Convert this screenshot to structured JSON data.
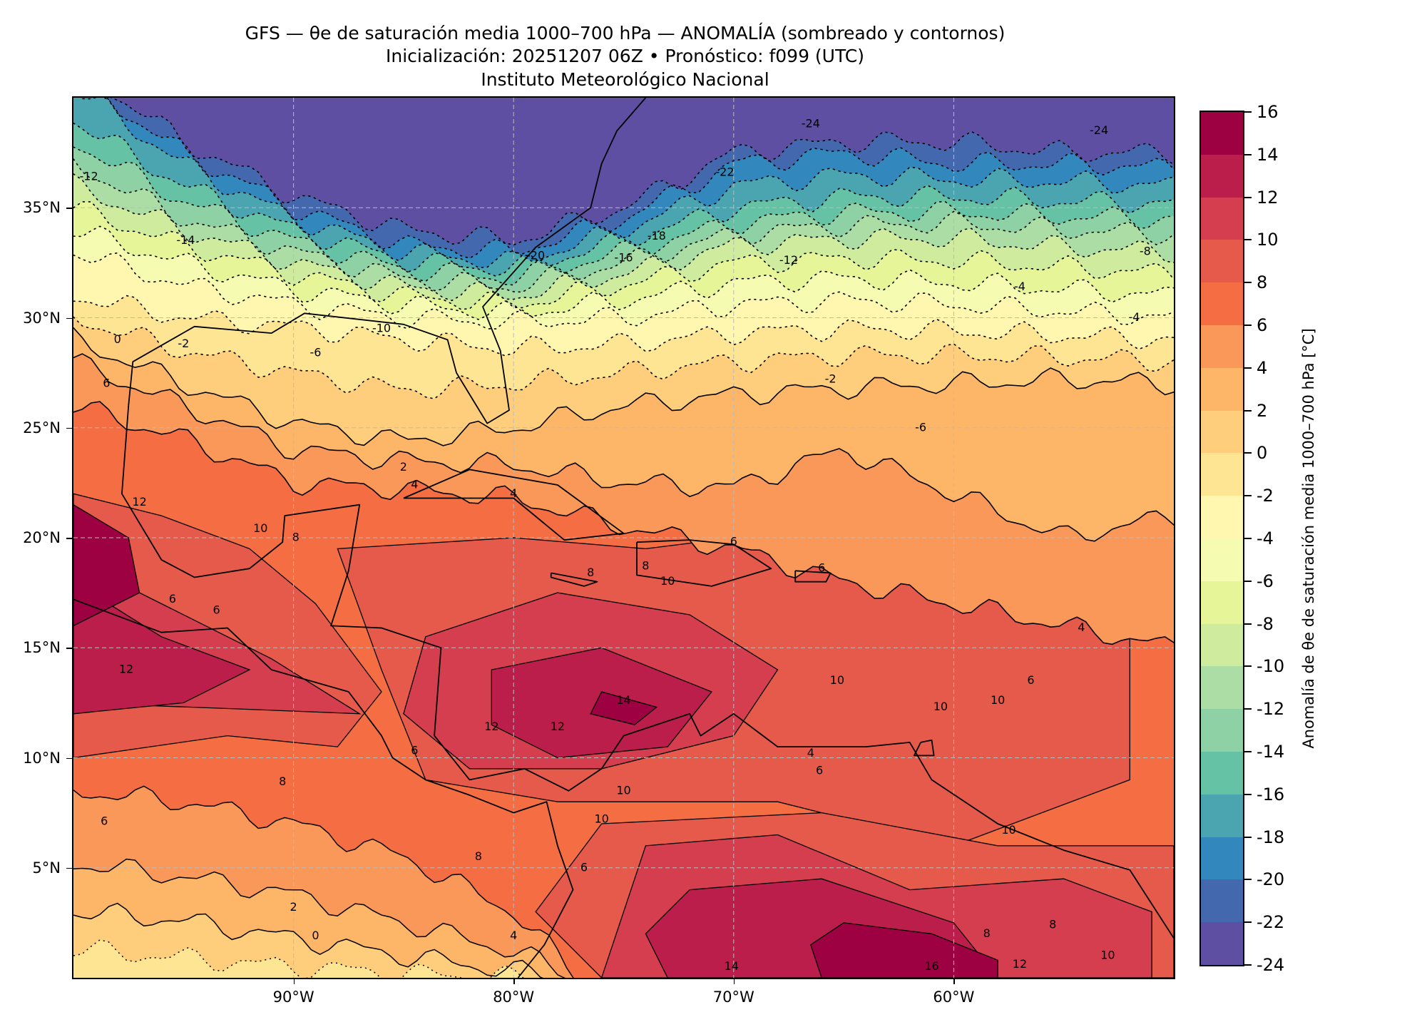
{
  "header": {
    "title_line1": "GFS — θe de saturación media 1000–700 hPa — ANOMALÍA (sombreado y contornos)",
    "title_line2": "Inicialización: 20251207 06Z   •   Pronóstico: f099 (UTC)",
    "title_line3": "Instituto Meteorológico Nacional"
  },
  "chart_data": {
    "type": "heatmap",
    "subtype": "filled contour map",
    "title": "GFS — θe de saturación media 1000–700 hPa — ANOMALÍA (sombreado y contornos)",
    "lon_range": [
      -100,
      -50
    ],
    "lat_range": [
      0,
      40
    ],
    "grid": true,
    "x_ticks": [
      {
        "lon": -90,
        "label": "90°W"
      },
      {
        "lon": -80,
        "label": "80°W"
      },
      {
        "lon": -70,
        "label": "70°W"
      },
      {
        "lon": -60,
        "label": "60°W"
      }
    ],
    "y_ticks": [
      {
        "lat": 5,
        "label": "5°N"
      },
      {
        "lat": 10,
        "label": "10°N"
      },
      {
        "lat": 15,
        "label": "15°N"
      },
      {
        "lat": 20,
        "label": "20°N"
      },
      {
        "lat": 25,
        "label": "25°N"
      },
      {
        "lat": 30,
        "label": "30°N"
      },
      {
        "lat": 35,
        "label": "35°N"
      }
    ],
    "colorbar": {
      "label": "Anomalía de θe de saturación media 1000–700 hPa [°C]",
      "placement": "right",
      "range": [
        -24,
        16
      ],
      "ticks": [
        "-24",
        "-22",
        "-20",
        "-18",
        "-16",
        "-14",
        "-12",
        "-10",
        "-8",
        "-6",
        "-4",
        "-2",
        "0",
        "2",
        "4",
        "6",
        "8",
        "10",
        "12",
        "14",
        "16"
      ],
      "colors": [
        "#5e4fa2",
        "#4468ae",
        "#3288bd",
        "#4ba5b1",
        "#66c2a5",
        "#8ed1a4",
        "#abdda4",
        "#cfeb9d",
        "#e6f598",
        "#f5fbb0",
        "#fff6b0",
        "#fee593",
        "#fece7c",
        "#fdb567",
        "#f99858",
        "#f46d43",
        "#e55a4b",
        "#d53e4f",
        "#bb1e4a",
        "#9e0142"
      ]
    },
    "contour_labels": [
      {
        "lon": -66.5,
        "lat": 38.8,
        "text": "-24"
      },
      {
        "lon": -53.4,
        "lat": 38.5,
        "text": "-24"
      },
      {
        "lon": -70.4,
        "lat": 36.6,
        "text": "-22"
      },
      {
        "lon": -99.3,
        "lat": 36.4,
        "text": "-12"
      },
      {
        "lon": -94.9,
        "lat": 33.5,
        "text": "-14"
      },
      {
        "lon": -79.0,
        "lat": 32.8,
        "text": "-20"
      },
      {
        "lon": -73.5,
        "lat": 33.7,
        "text": "-18"
      },
      {
        "lon": -75.0,
        "lat": 32.7,
        "text": "-16"
      },
      {
        "lon": -67.5,
        "lat": 32.6,
        "text": "-12"
      },
      {
        "lon": -51.3,
        "lat": 33.0,
        "text": "-8"
      },
      {
        "lon": -57.0,
        "lat": 31.4,
        "text": "-4"
      },
      {
        "lon": -51.8,
        "lat": 30.0,
        "text": "-4"
      },
      {
        "lon": -86.0,
        "lat": 29.5,
        "text": "-10"
      },
      {
        "lon": -89.0,
        "lat": 28.4,
        "text": "-6"
      },
      {
        "lon": -98.0,
        "lat": 29.0,
        "text": "0"
      },
      {
        "lon": -95.0,
        "lat": 28.8,
        "text": "-2"
      },
      {
        "lon": -98.5,
        "lat": 27.0,
        "text": "6"
      },
      {
        "lon": -85.0,
        "lat": 23.2,
        "text": "2"
      },
      {
        "lon": -84.5,
        "lat": 22.4,
        "text": "4"
      },
      {
        "lon": -80.0,
        "lat": 22.0,
        "text": "4"
      },
      {
        "lon": -65.6,
        "lat": 27.2,
        "text": "-2"
      },
      {
        "lon": -61.5,
        "lat": 25.0,
        "text": "-6"
      },
      {
        "lon": -97.0,
        "lat": 21.6,
        "text": "12"
      },
      {
        "lon": -91.5,
        "lat": 20.4,
        "text": "10"
      },
      {
        "lon": -89.9,
        "lat": 20.0,
        "text": "8"
      },
      {
        "lon": -95.5,
        "lat": 17.2,
        "text": "6"
      },
      {
        "lon": -93.5,
        "lat": 16.7,
        "text": "6"
      },
      {
        "lon": -76.5,
        "lat": 18.4,
        "text": "8"
      },
      {
        "lon": -74.0,
        "lat": 18.7,
        "text": "8"
      },
      {
        "lon": -73.0,
        "lat": 18.0,
        "text": "10"
      },
      {
        "lon": -70.0,
        "lat": 19.8,
        "text": "6"
      },
      {
        "lon": -66.0,
        "lat": 18.6,
        "text": "6"
      },
      {
        "lon": -54.2,
        "lat": 15.9,
        "text": "4"
      },
      {
        "lon": -65.3,
        "lat": 13.5,
        "text": "10"
      },
      {
        "lon": -60.6,
        "lat": 12.3,
        "text": "10"
      },
      {
        "lon": -58.0,
        "lat": 12.6,
        "text": "10"
      },
      {
        "lon": -56.5,
        "lat": 13.5,
        "text": "6"
      },
      {
        "lon": -97.6,
        "lat": 14.0,
        "text": "12"
      },
      {
        "lon": -75.0,
        "lat": 12.6,
        "text": "14"
      },
      {
        "lon": -78.0,
        "lat": 11.4,
        "text": "12"
      },
      {
        "lon": -81.0,
        "lat": 11.4,
        "text": "12"
      },
      {
        "lon": -84.5,
        "lat": 10.3,
        "text": "6"
      },
      {
        "lon": -90.5,
        "lat": 8.9,
        "text": "8"
      },
      {
        "lon": -75.0,
        "lat": 8.5,
        "text": "10"
      },
      {
        "lon": -66.5,
        "lat": 10.2,
        "text": "4"
      },
      {
        "lon": -66.1,
        "lat": 9.4,
        "text": "6"
      },
      {
        "lon": -76.0,
        "lat": 7.2,
        "text": "10"
      },
      {
        "lon": -98.6,
        "lat": 7.1,
        "text": "6"
      },
      {
        "lon": -81.6,
        "lat": 5.5,
        "text": "8"
      },
      {
        "lon": -76.8,
        "lat": 5.0,
        "text": "6"
      },
      {
        "lon": -90.0,
        "lat": 3.2,
        "text": "2"
      },
      {
        "lon": -89.0,
        "lat": 1.9,
        "text": "0"
      },
      {
        "lon": -80.0,
        "lat": 1.9,
        "text": "4"
      },
      {
        "lon": -57.5,
        "lat": 6.7,
        "text": "10"
      },
      {
        "lon": -58.5,
        "lat": 2.0,
        "text": "8"
      },
      {
        "lon": -55.5,
        "lat": 2.4,
        "text": "8"
      },
      {
        "lon": -53.0,
        "lat": 1.0,
        "text": "10"
      },
      {
        "lon": -57.0,
        "lat": 0.6,
        "text": "12"
      },
      {
        "lon": -70.1,
        "lat": 0.5,
        "text": "14"
      },
      {
        "lon": -61.0,
        "lat": 0.5,
        "text": "16"
      }
    ]
  }
}
